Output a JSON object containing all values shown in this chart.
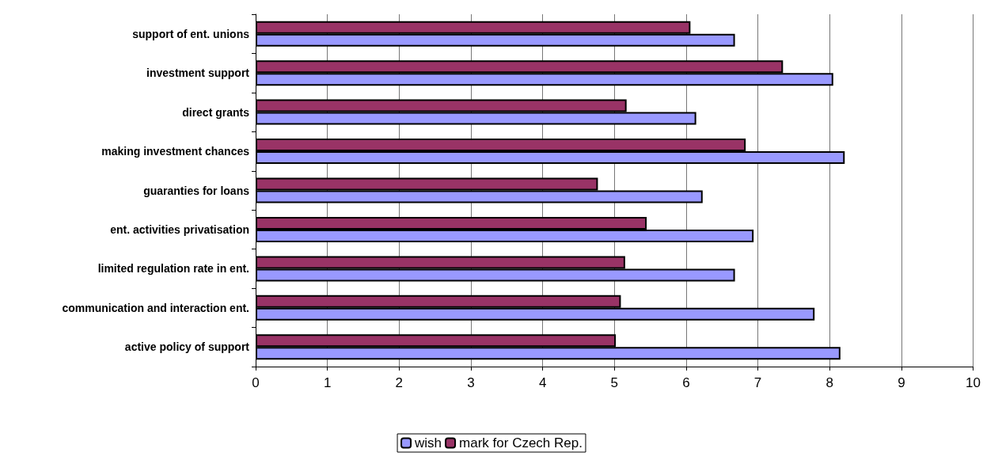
{
  "chart_data": {
    "type": "bar",
    "orientation": "horizontal",
    "categories": [
      "support of ent. unions",
      "investment support",
      "direct grants",
      "making investment chances",
      "guaranties for loans",
      "ent. activities privatisation",
      "limited regulation rate in ent.",
      "communication and interaction ent.",
      "active policy of support"
    ],
    "series": [
      {
        "name": "wish",
        "color": "#9999ff",
        "values": [
          6.68,
          8.05,
          6.14,
          8.21,
          6.23,
          6.94,
          6.68,
          7.79,
          8.15
        ]
      },
      {
        "name": "mark for Czech Rep.",
        "color": "#993366",
        "values": [
          6.06,
          7.35,
          5.17,
          6.83,
          4.77,
          5.45,
          5.15,
          5.09,
          5.02
        ]
      }
    ],
    "xlim": [
      0,
      10
    ],
    "xticks": [
      0,
      1,
      2,
      3,
      4,
      5,
      6,
      7,
      8,
      9,
      10
    ],
    "grid": "x",
    "legend": "bottom"
  }
}
